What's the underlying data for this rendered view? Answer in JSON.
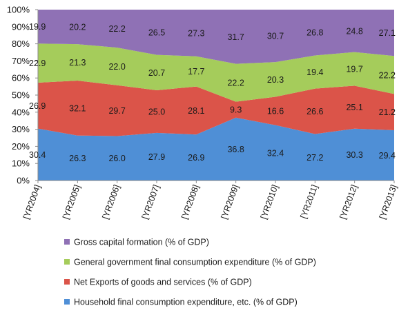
{
  "chart_data": {
    "type": "area",
    "stacked": "percent",
    "categories": [
      "[YR2004]",
      "[YR2005]",
      "[YR2006]",
      "[YR2007]",
      "[YR2008]",
      "[YR2009]",
      "[YR2010]",
      "[YR2011]",
      "[YR2012]",
      "[YR2013]"
    ],
    "series": [
      {
        "name": "Household final consumption expenditure, etc. (% of GDP)",
        "color": "#4f8fd6",
        "values": [
          30.4,
          26.3,
          26.0,
          27.9,
          26.9,
          36.8,
          32.4,
          27.2,
          30.3,
          29.4
        ]
      },
      {
        "name": "Net Exports of goods and services (% of GDP)",
        "color": "#db5449",
        "values": [
          26.9,
          32.1,
          29.7,
          25.0,
          28.1,
          9.3,
          16.6,
          26.6,
          25.1,
          21.2
        ]
      },
      {
        "name": "General government final consumption expenditure (% of GDP)",
        "color": "#a5cc5b",
        "values": [
          22.9,
          21.3,
          22.0,
          20.7,
          17.7,
          22.2,
          20.3,
          19.4,
          19.7,
          22.2
        ]
      },
      {
        "name": "Gross capital formation (% of GDP)",
        "color": "#8f71b5",
        "values": [
          19.9,
          20.2,
          22.2,
          26.5,
          27.3,
          31.7,
          30.7,
          26.8,
          24.8,
          27.1
        ]
      }
    ],
    "value_labels": [
      [
        "30.4",
        "26.3",
        "26.0",
        "27.9",
        "26.9",
        "36.8",
        "32.4",
        "27.2",
        "30.3",
        "29.4"
      ],
      [
        "26.9",
        "32.1",
        "29.7",
        "25.0",
        "28.1",
        "9.3",
        "16.6",
        "26.6",
        "25.1",
        "21.2"
      ],
      [
        "22.9",
        "21.3",
        "22.0",
        "20.7",
        "17.7",
        "22.2",
        "20.3",
        "19.4",
        "19.7",
        "22.2"
      ],
      [
        "19.9",
        "20.2",
        "22.2",
        "26.5",
        "27.3",
        "31.7",
        "30.7",
        "26.8",
        "24.8",
        "27.1"
      ]
    ],
    "yticks": [
      "0%",
      "10%",
      "20%",
      "30%",
      "40%",
      "50%",
      "60%",
      "70%",
      "80%",
      "90%",
      "100%"
    ],
    "ylim": [
      0,
      100
    ],
    "grid": false,
    "legend": {
      "position": "bottom",
      "order": [
        3,
        2,
        1,
        0
      ]
    }
  }
}
